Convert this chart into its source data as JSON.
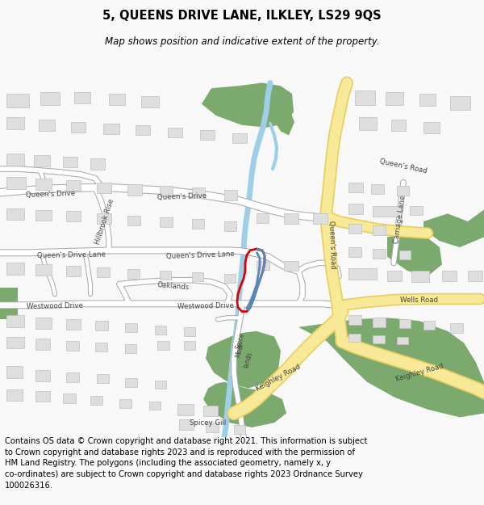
{
  "title": "5, QUEENS DRIVE LANE, ILKLEY, LS29 9QS",
  "subtitle": "Map shows position and indicative extent of the property.",
  "footer": "Contains OS data © Crown copyright and database right 2021. This information is subject\nto Crown copyright and database rights 2023 and is reproduced with the permission of\nHM Land Registry. The polygons (including the associated geometry, namely x, y\nco-ordinates) are subject to Crown copyright and database rights 2023 Ordnance Survey\n100026316.",
  "bg_color": "#f8f8f8",
  "map_bg": "#f2f1ee",
  "road_major_color": "#f7e998",
  "road_major_stroke": "#e8d060",
  "road_minor_color": "#ffffff",
  "road_minor_stroke": "#aaaaaa",
  "green_color": "#7caa6e",
  "water_color": "#9dd0e8",
  "building_color": "#dedede",
  "building_stroke": "#c0c0c0",
  "property_stroke": "#dd0000",
  "property_blue": "#5588bb",
  "title_fontsize": 10.5,
  "subtitle_fontsize": 8.5,
  "footer_fontsize": 7.2,
  "label_fontsize": 6.2,
  "label_color": "#444444"
}
